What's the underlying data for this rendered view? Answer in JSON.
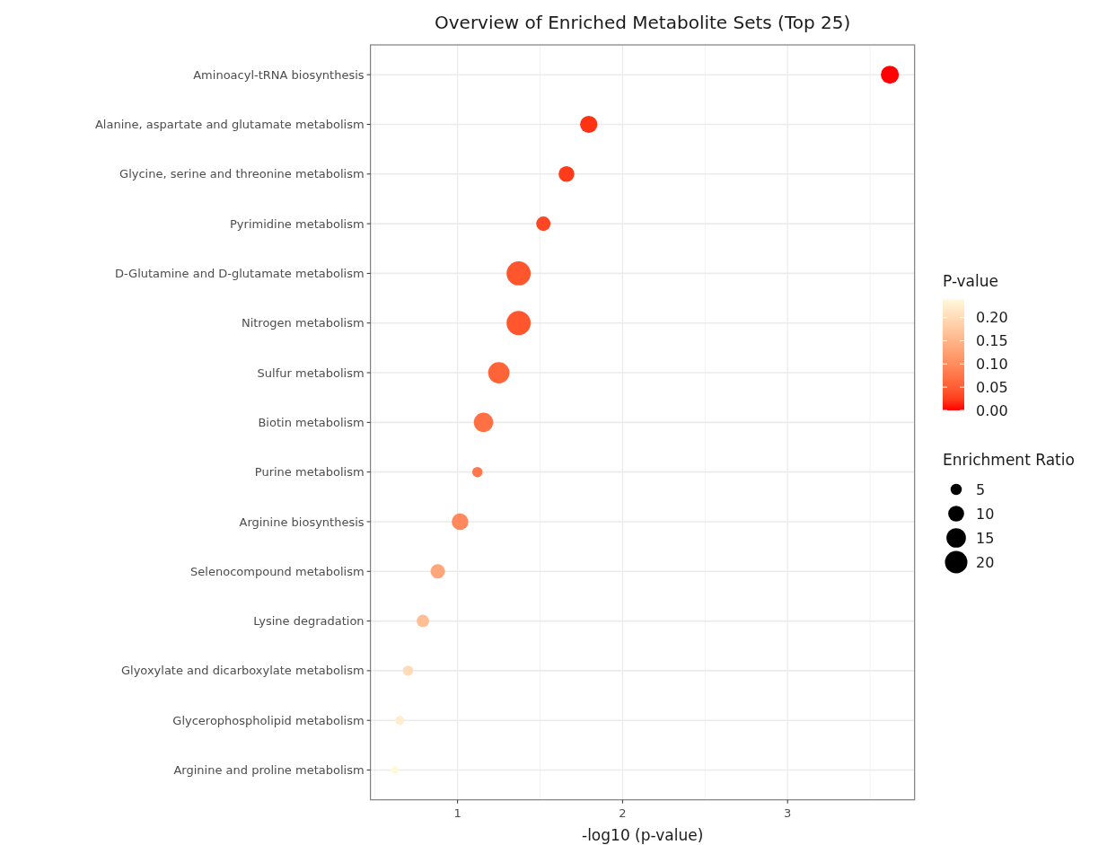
{
  "chart_data": {
    "type": "bubble",
    "title": "Overview of Enriched Metabolite Sets (Top 25)",
    "xlabel": "-log10 (p-value)",
    "clabel": "P-value",
    "legend_title": "Enrichment Ratio",
    "categories": [
      "Aminoacyl-tRNA biosynthesis",
      "Alanine, aspartate and glutamate metabolism",
      "Glycine, serine and threonine metabolism",
      "Pyrimidine metabolism",
      "D-Glutamine and D-glutamate metabolism",
      "Nitrogen metabolism",
      "Sulfur metabolism",
      "Biotin metabolism",
      "Purine metabolism",
      "Arginine biosynthesis",
      "Selenocompound metabolism",
      "Lysine degradation",
      "Glyoxylate and dicarboxylate metabolism",
      "Glycerophospholipid metabolism",
      "Arginine and proline metabolism"
    ],
    "orientation": "horizontal",
    "values": [
      3.62,
      1.795,
      1.66,
      1.52,
      1.37,
      1.37,
      1.25,
      1.157,
      1.12,
      1.015,
      0.88,
      0.79,
      0.7,
      0.65,
      0.62
    ],
    "sizes": [
      12.8,
      11.8,
      9.9,
      8.2,
      23,
      23,
      18,
      14.8,
      4.2,
      10.9,
      8.2,
      6.2,
      4.2,
      3.2,
      2.3
    ],
    "cvalues": [
      0.00024,
      0.016,
      0.022,
      0.03,
      0.043,
      0.043,
      0.056,
      0.07,
      0.076,
      0.097,
      0.132,
      0.162,
      0.2,
      0.224,
      0.24
    ],
    "size_legend": [
      5,
      10,
      15,
      20
    ],
    "clim": [
      0,
      0.24
    ],
    "cticks": [
      {
        "value": 0,
        "label": "0.00"
      },
      {
        "value": 0.05,
        "label": "0.05"
      },
      {
        "value": 0.1,
        "label": "0.10"
      },
      {
        "value": 0.15,
        "label": "0.15"
      },
      {
        "value": 0.2,
        "label": "0.20"
      }
    ],
    "xlim": [
      0.472,
      3.77
    ],
    "xticks": [
      1,
      2,
      3
    ],
    "grid": true
  }
}
